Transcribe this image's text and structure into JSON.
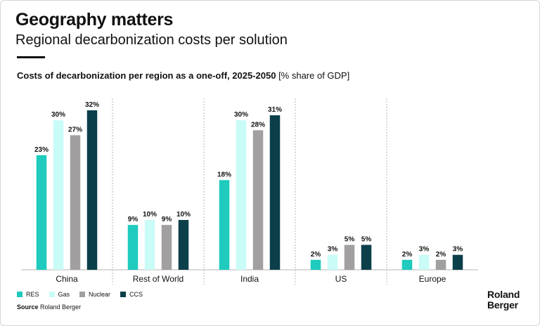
{
  "header": {
    "title": "Geography matters",
    "subtitle": "Regional decarbonization costs per solution"
  },
  "chart_heading": {
    "bold": "Costs of decarbonization per region as a one-off, 2025-2050",
    "unit": "[% share of GDP]"
  },
  "colors": {
    "RES": "#1ecbbd",
    "Gas": "#c9fbf7",
    "Nuclear": "#a19f9f",
    "CCS": "#0b3f4a"
  },
  "chart_data": {
    "type": "bar",
    "title": "Costs of decarbonization per region as a one-off, 2025-2050",
    "ylabel": "% share of GDP",
    "ylim": [
      0,
      32
    ],
    "grid": false,
    "legend": "bottom-left",
    "categories": [
      "China",
      "Rest of World",
      "India",
      "US",
      "Europe"
    ],
    "series": [
      {
        "name": "RES",
        "values": [
          23,
          9,
          18,
          2,
          2
        ]
      },
      {
        "name": "Gas",
        "values": [
          30,
          10,
          30,
          3,
          3
        ]
      },
      {
        "name": "Nuclear",
        "values": [
          27,
          9,
          28,
          5,
          2
        ]
      },
      {
        "name": "CCS",
        "values": [
          32,
          10,
          31,
          5,
          3
        ]
      }
    ],
    "value_suffix": "%"
  },
  "legend_items": [
    "RES",
    "Gas",
    "Nuclear",
    "CCS"
  ],
  "source": {
    "label": "Source",
    "text": "Roland Berger"
  },
  "logo": {
    "line1": "Roland",
    "line2": "Berger"
  }
}
